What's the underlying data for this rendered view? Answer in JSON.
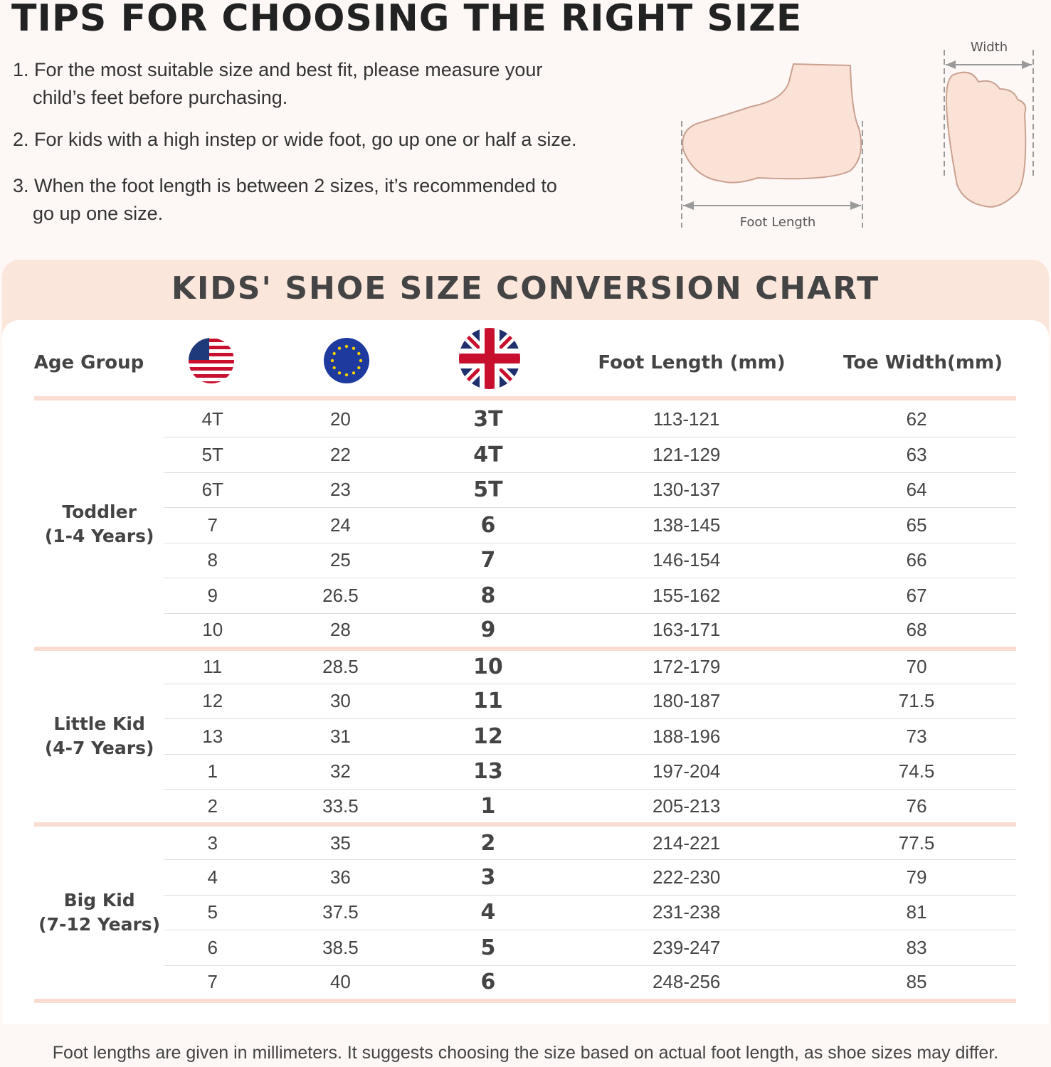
{
  "title": "TIPS FOR CHOOSING THE RIGHT SIZE",
  "tips": [
    {
      "line1": "1. For the most suitable size and best fit, please measure your",
      "line2": "child’s feet before purchasing."
    },
    {
      "line1": "2. For kids with a high instep or wide foot, go up one or half a size.",
      "line2": ""
    },
    {
      "line1": "3. When the foot length is between 2 sizes, it’s recommended to",
      "line2": "go up one size."
    }
  ],
  "diagram": {
    "length_label": "Foot  Length",
    "width_label": "Width",
    "skin_color": "#fbe2d6",
    "outline_color": "#c9a191"
  },
  "chart_title": "KIDS' SHOE SIZE CONVERSION CHART",
  "headers": {
    "age": "Age Group",
    "us_icon": "us-flag-icon",
    "eu_icon": "eu-flag-icon",
    "uk_icon": "uk-flag-icon",
    "foot": "Foot Length (mm)",
    "toe": "Toe Width(mm)"
  },
  "colors": {
    "band": "#fbe6dc",
    "separator": "#f9ddd2"
  },
  "groups": [
    {
      "name": "Toddler",
      "years": "(1-4 Years)",
      "rows": [
        [
          "4T",
          "20",
          "3T",
          "113-121",
          "62"
        ],
        [
          "5T",
          "22",
          "4T",
          "121-129",
          "63"
        ],
        [
          "6T",
          "23",
          "5T",
          "130-137",
          "64"
        ],
        [
          "7",
          "24",
          "6",
          "138-145",
          "65"
        ],
        [
          "8",
          "25",
          "7",
          "146-154",
          "66"
        ],
        [
          "9",
          "26.5",
          "8",
          "155-162",
          "67"
        ],
        [
          "10",
          "28",
          "9",
          "163-171",
          "68"
        ]
      ]
    },
    {
      "name": "Little Kid",
      "years": "(4-7 Years)",
      "rows": [
        [
          "11",
          "28.5",
          "10",
          "172-179",
          "70"
        ],
        [
          "12",
          "30",
          "11",
          "180-187",
          "71.5"
        ],
        [
          "13",
          "31",
          "12",
          "188-196",
          "73"
        ],
        [
          "1",
          "32",
          "13",
          "197-204",
          "74.5"
        ],
        [
          "2",
          "33.5",
          "1",
          "205-213",
          "76"
        ]
      ]
    },
    {
      "name": "Big Kid",
      "years": "(7-12 Years)",
      "rows": [
        [
          "3",
          "35",
          "2",
          "214-221",
          "77.5"
        ],
        [
          "4",
          "36",
          "3",
          "222-230",
          "79"
        ],
        [
          "5",
          "37.5",
          "4",
          "231-238",
          "81"
        ],
        [
          "6",
          "38.5",
          "5",
          "239-247",
          "83"
        ],
        [
          "7",
          "40",
          "6",
          "248-256",
          "85"
        ]
      ]
    }
  ],
  "footer": "Foot lengths are given in millimeters. It suggests choosing the size based on actual foot length, as shoe sizes may differ."
}
